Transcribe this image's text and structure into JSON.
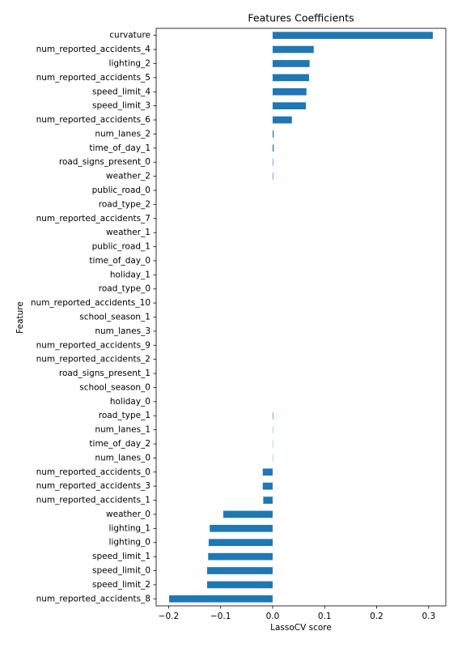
{
  "chart_data": {
    "type": "barh",
    "title": "Features Coefficients",
    "xlabel": "LassoCV score",
    "ylabel": "Feature",
    "categories": [
      "curvature",
      "num_reported_accidents_4",
      "lighting_2",
      "num_reported_accidents_5",
      "speed_limit_4",
      "speed_limit_3",
      "num_reported_accidents_6",
      "num_lanes_2",
      "time_of_day_1",
      "road_signs_present_0",
      "weather_2",
      "public_road_0",
      "road_type_2",
      "num_reported_accidents_7",
      "weather_1",
      "public_road_1",
      "time_of_day_0",
      "holiday_1",
      "road_type_0",
      "num_reported_accidents_10",
      "school_season_1",
      "num_lanes_3",
      "num_reported_accidents_9",
      "num_reported_accidents_2",
      "road_signs_present_1",
      "school_season_0",
      "holiday_0",
      "road_type_1",
      "num_lanes_1",
      "time_of_day_2",
      "num_lanes_0",
      "num_reported_accidents_0",
      "num_reported_accidents_3",
      "num_reported_accidents_1",
      "weather_0",
      "lighting_1",
      "lighting_0",
      "speed_limit_1",
      "speed_limit_0",
      "speed_limit_2",
      "num_reported_accidents_8"
    ],
    "values": [
      0.308,
      0.079,
      0.071,
      0.07,
      0.065,
      0.064,
      0.037,
      0.002,
      0.002,
      0.001,
      0.001,
      0,
      0,
      0,
      0,
      0,
      0,
      0,
      0,
      0,
      0,
      0,
      0,
      0,
      0,
      0,
      0,
      0.001,
      0.0005,
      0.0005,
      0.0005,
      -0.019,
      -0.019,
      -0.018,
      -0.095,
      -0.121,
      -0.123,
      -0.124,
      -0.126,
      -0.126,
      -0.199
    ],
    "color": "#1f77b4",
    "xlim": [
      -0.224,
      0.333
    ],
    "xticks": [
      {
        "value": -0.2,
        "label": "−0.2"
      },
      {
        "value": -0.1,
        "label": "−0.1"
      },
      {
        "value": 0,
        "label": "0.0"
      },
      0.1,
      0.2,
      0.3
    ],
    "grid": false
  }
}
